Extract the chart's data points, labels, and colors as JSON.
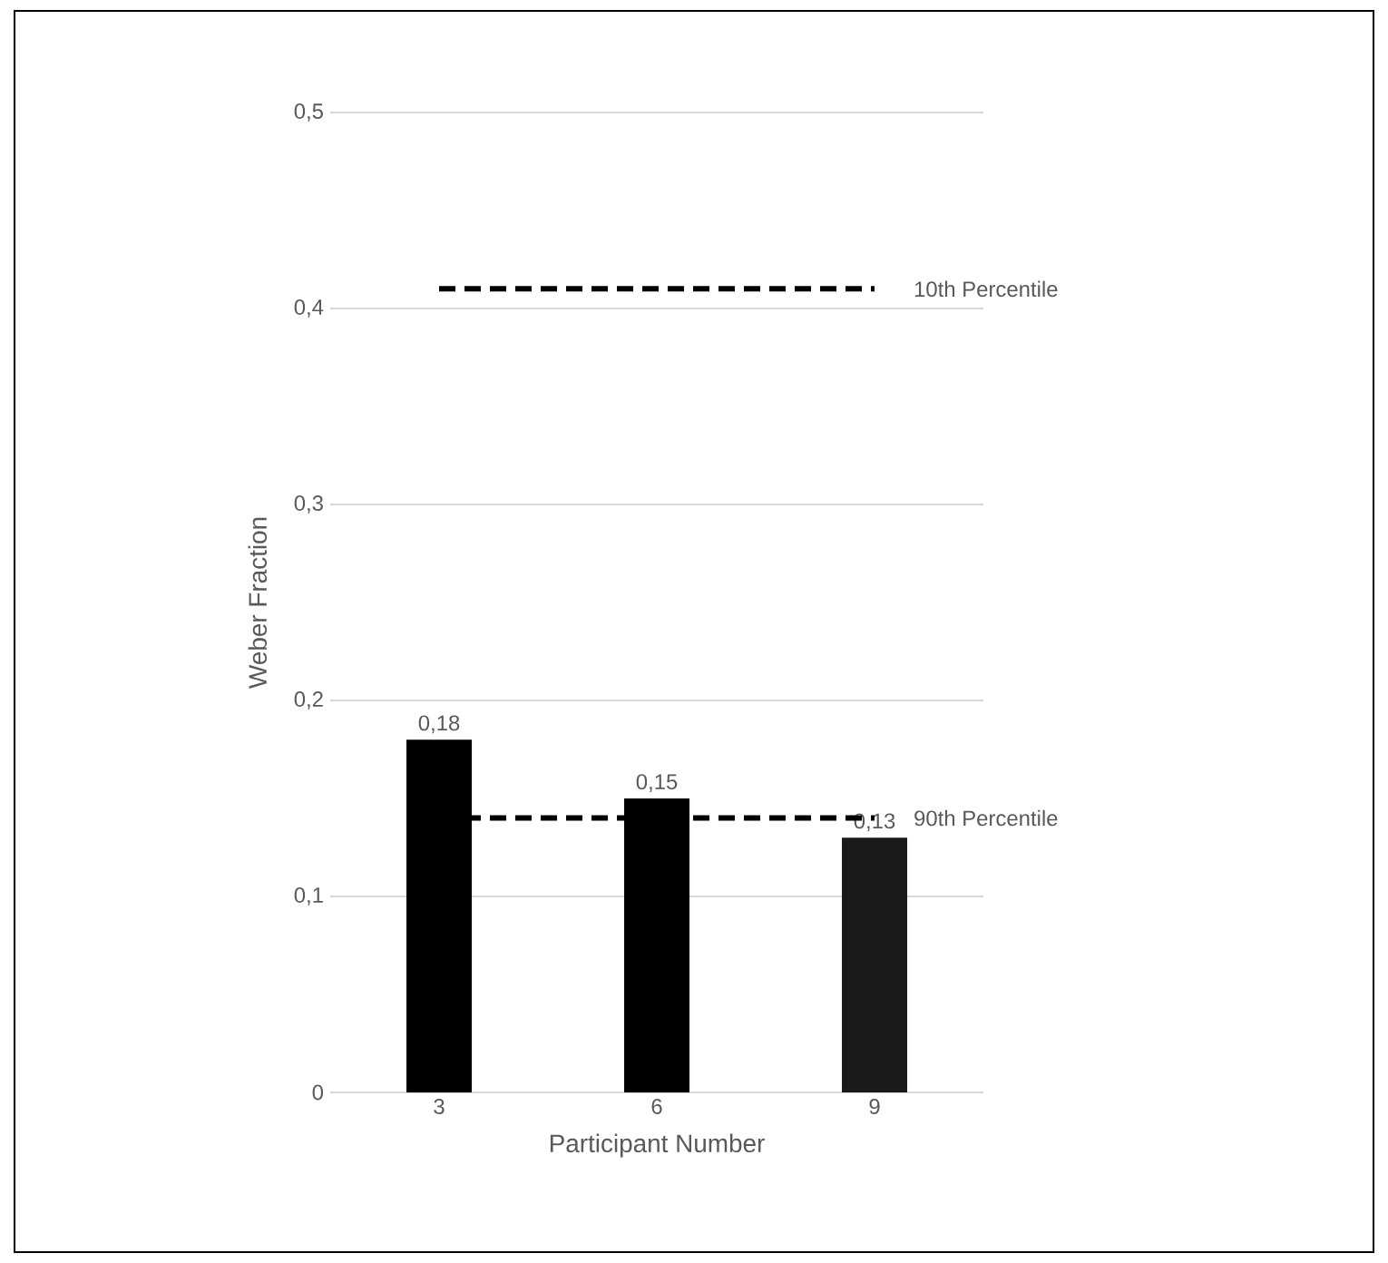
{
  "chart_data": {
    "type": "bar",
    "xlabel": "Participant Number",
    "ylabel": "Weber Fraction",
    "categories": [
      "3",
      "6",
      "9"
    ],
    "values": [
      0.18,
      0.15,
      0.13
    ],
    "colors": [
      "#000000",
      "#000000",
      "#1a1a1a"
    ],
    "value_labels": [
      "0,18",
      "0,15",
      "0,13"
    ],
    "ylim": [
      0,
      0.5
    ],
    "yticks": [
      0,
      {
        "value": 0.1,
        "label": "0,1"
      },
      {
        "value": 0.2,
        "label": "0,2"
      },
      {
        "value": 0.3,
        "label": "0,3"
      },
      {
        "value": 0.4,
        "label": "0,4"
      },
      {
        "value": 0.5,
        "label": "0,5"
      }
    ],
    "grid": "y",
    "ref_lines": [
      {
        "axis": "y",
        "value": 0.41,
        "label": "10th Percentile",
        "color": "#000000",
        "line_style": "dashed"
      },
      {
        "axis": "y",
        "value": 0.14,
        "label": "90th Percentile",
        "color": "#000000",
        "line_style": "dashed"
      }
    ]
  }
}
